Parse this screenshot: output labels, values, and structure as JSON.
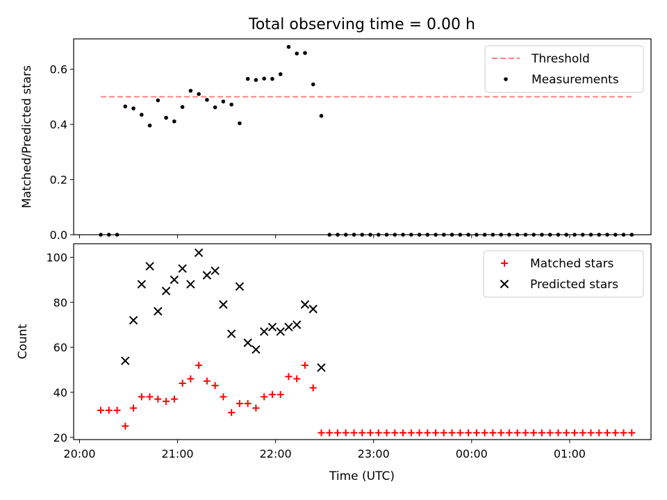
{
  "chart_data": {
    "title": "Total observing time = 0.00 h",
    "xlabel": "Time (UTC)",
    "x_ticks": [
      "20:00",
      "21:00",
      "22:00",
      "23:00",
      "00:00",
      "01:00"
    ],
    "x_range_hours": [
      19.94,
      25.83
    ],
    "panels": [
      {
        "type": "scatter",
        "ylabel": "Matched/Predicted stars",
        "ylim": [
          0,
          0.71
        ],
        "y_ticks": [
          "0.0",
          "0.2",
          "0.4",
          "0.6"
        ],
        "threshold": {
          "name": "Threshold",
          "value": 0.5,
          "x_start": "20:13",
          "x_end": "01:38",
          "color": "#ff8080"
        },
        "series": [
          {
            "name": "Measurements",
            "color": "#000000",
            "x": [
              "20:13",
              "20:18",
              "20:23",
              "20:28",
              "20:33",
              "20:38",
              "20:43",
              "20:48",
              "20:53",
              "20:58",
              "21:03",
              "21:08",
              "21:13",
              "21:18",
              "21:23",
              "21:28",
              "21:33",
              "21:38",
              "21:43",
              "21:48",
              "21:53",
              "21:58",
              "22:03",
              "22:08",
              "22:13",
              "22:18",
              "22:23",
              "22:28",
              "22:33",
              "22:38",
              "22:43",
              "22:48",
              "22:53",
              "22:58",
              "23:03",
              "23:08",
              "23:13",
              "23:18",
              "23:23",
              "23:28",
              "23:33",
              "23:38",
              "23:43",
              "23:48",
              "23:53",
              "23:58",
              "00:03",
              "00:08",
              "00:13",
              "00:18",
              "00:23",
              "00:28",
              "00:33",
              "00:38",
              "00:43",
              "00:48",
              "00:53",
              "00:58",
              "01:03",
              "01:08",
              "01:13",
              "01:18",
              "01:23",
              "01:28",
              "01:33",
              "01:38"
            ],
            "y": [
              0.0,
              0.0,
              0.0,
              0.465,
              0.458,
              0.435,
              0.396,
              0.487,
              0.424,
              0.411,
              0.463,
              0.522,
              0.51,
              0.489,
              0.462,
              0.483,
              0.472,
              0.404,
              0.565,
              0.561,
              0.566,
              0.565,
              0.582,
              0.681,
              0.657,
              0.659,
              0.545,
              0.431,
              0.0,
              0.0,
              0.0,
              0.0,
              0.0,
              0.0,
              0.0,
              0.0,
              0.0,
              0.0,
              0.0,
              0.0,
              0.0,
              0.0,
              0.0,
              0.0,
              0.0,
              0.0,
              0.0,
              0.0,
              0.0,
              0.0,
              0.0,
              0.0,
              0.0,
              0.0,
              0.0,
              0.0,
              0.0,
              0.0,
              0.0,
              0.0,
              0.0,
              0.0,
              0.0,
              0.0,
              0.0,
              0.0
            ]
          }
        ]
      },
      {
        "type": "scatter",
        "ylabel": "Count",
        "ylim": [
          19,
          106
        ],
        "y_ticks": [
          "20",
          "40",
          "60",
          "80",
          "100"
        ],
        "series": [
          {
            "name": "Matched stars",
            "marker": "+",
            "color": "#ff0000",
            "x": [
              "20:13",
              "20:18",
              "20:23",
              "20:28",
              "20:33",
              "20:38",
              "20:43",
              "20:48",
              "20:53",
              "20:58",
              "21:03",
              "21:08",
              "21:13",
              "21:18",
              "21:23",
              "21:28",
              "21:33",
              "21:38",
              "21:43",
              "21:48",
              "21:53",
              "21:58",
              "22:03",
              "22:08",
              "22:13",
              "22:18",
              "22:23",
              "22:28",
              "22:33",
              "22:38",
              "22:43",
              "22:48",
              "22:53",
              "22:58",
              "23:03",
              "23:08",
              "23:13",
              "23:18",
              "23:23",
              "23:28",
              "23:33",
              "23:38",
              "23:43",
              "23:48",
              "23:53",
              "23:58",
              "00:03",
              "00:08",
              "00:13",
              "00:18",
              "00:23",
              "00:28",
              "00:33",
              "00:38",
              "00:43",
              "00:48",
              "00:53",
              "00:58",
              "01:03",
              "01:08",
              "01:13",
              "01:18",
              "01:23",
              "01:28",
              "01:33",
              "01:38"
            ],
            "y": [
              32,
              32,
              32,
              25,
              33,
              38,
              38,
              37,
              36,
              37,
              44,
              46,
              52,
              45,
              43,
              38,
              31,
              35,
              35,
              33,
              38,
              39,
              39,
              47,
              46,
              52,
              42,
              22,
              22,
              22,
              22,
              22,
              22,
              22,
              22,
              22,
              22,
              22,
              22,
              22,
              22,
              22,
              22,
              22,
              22,
              22,
              22,
              22,
              22,
              22,
              22,
              22,
              22,
              22,
              22,
              22,
              22,
              22,
              22,
              22,
              22,
              22,
              22,
              22,
              22,
              22
            ]
          },
          {
            "name": "Predicted stars",
            "marker": "x",
            "color": "#000000",
            "x": [
              "20:28",
              "20:33",
              "20:38",
              "20:43",
              "20:48",
              "20:53",
              "20:58",
              "21:03",
              "21:08",
              "21:13",
              "21:18",
              "21:23",
              "21:28",
              "21:33",
              "21:38",
              "21:43",
              "21:48",
              "21:53",
              "21:58",
              "22:03",
              "22:08",
              "22:13",
              "22:18",
              "22:23",
              "22:28"
            ],
            "y": [
              54,
              72,
              88,
              96,
              76,
              85,
              90,
              95,
              88,
              102,
              92,
              94,
              79,
              66,
              87,
              62,
              59,
              67,
              69,
              67,
              69,
              70,
              79,
              77,
              51
            ]
          }
        ]
      }
    ]
  }
}
